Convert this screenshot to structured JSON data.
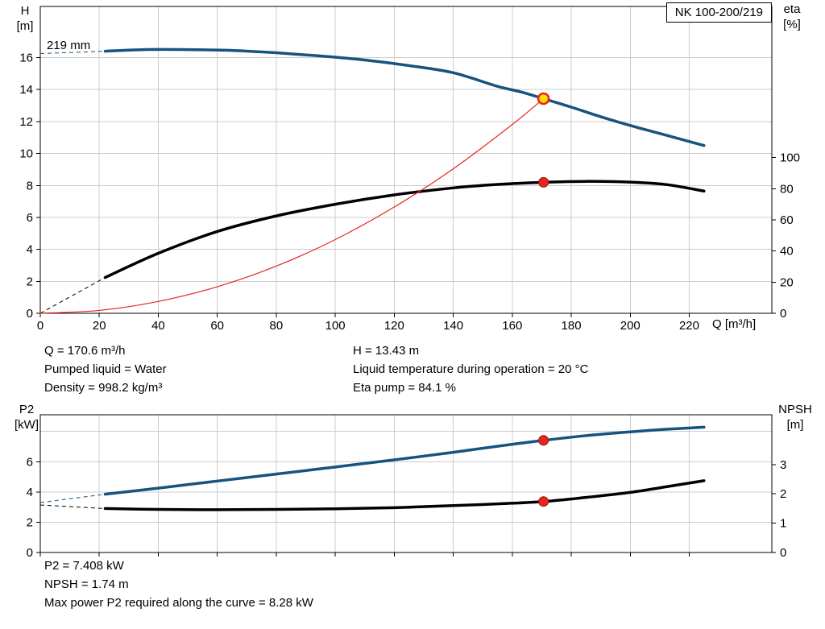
{
  "pump": {
    "model": "NK 100-200/219"
  },
  "info_top": {
    "left": [
      "Q = 170.6 m³/h",
      "Pumped liquid = Water",
      "Density = 998.2 kg/m³"
    ],
    "right": [
      "H = 13.43 m",
      "Liquid temperature during operation = 20 °C",
      "Eta pump = 84.1 %"
    ]
  },
  "info_bottom": [
    "P2 = 7.408 kW",
    "NPSH = 1.74 m",
    "Max power P2 required along the curve = 8.28 kW"
  ],
  "chart_data": [
    {
      "type": "line",
      "x": {
        "label": "Q [m³/h]",
        "min": 0,
        "max": 248,
        "ticks": [
          0,
          20,
          40,
          60,
          80,
          100,
          120,
          140,
          160,
          180,
          200,
          220
        ],
        "grid": [
          20,
          40,
          60,
          80,
          100,
          120,
          140,
          160,
          180,
          200,
          220
        ]
      },
      "y_left": {
        "name": "H",
        "unit": "[m]",
        "min": 0,
        "max": 19.2,
        "ticks": [
          0,
          2,
          4,
          6,
          8,
          10,
          12,
          14,
          16
        ],
        "grid": [
          2,
          4,
          6,
          8,
          10,
          12,
          14,
          16
        ]
      },
      "y_right": {
        "name": "eta",
        "unit": "[%]",
        "min": 0,
        "max": 197,
        "ticks": [
          0,
          20,
          40,
          60,
          80,
          100
        ]
      },
      "series": [
        {
          "id": "efficiency-curve",
          "label": "eta",
          "axis": "right",
          "color": "#000000",
          "width": 3.5,
          "dashed_lead": [
            [
              0,
              0
            ],
            [
              22,
              23
            ]
          ],
          "points": [
            [
              22,
              23
            ],
            [
              40,
              38.5
            ],
            [
              60,
              52.5
            ],
            [
              80,
              62.5
            ],
            [
              100,
              70
            ],
            [
              120,
              76
            ],
            [
              140,
              80.5
            ],
            [
              155,
              82.7
            ],
            [
              170.6,
              84.1
            ],
            [
              185,
              84.7
            ],
            [
              200,
              84.2
            ],
            [
              212,
              82.7
            ],
            [
              225,
              78.5
            ]
          ]
        },
        {
          "id": "head-curve",
          "label": "219 mm",
          "axis": "left",
          "color": "#16537e",
          "width": 3.5,
          "dashed_lead": [
            [
              0,
              16.25
            ],
            [
              22,
              16.4
            ]
          ],
          "points": [
            [
              22,
              16.4
            ],
            [
              35,
              16.5
            ],
            [
              50,
              16.5
            ],
            [
              65,
              16.45
            ],
            [
              80,
              16.3
            ],
            [
              95,
              16.1
            ],
            [
              110,
              15.85
            ],
            [
              125,
              15.5
            ],
            [
              140,
              15.05
            ],
            [
              155,
              14.2
            ],
            [
              163,
              13.85
            ],
            [
              170.6,
              13.43
            ],
            [
              180,
              12.9
            ],
            [
              190,
              12.3
            ],
            [
              200,
              11.75
            ],
            [
              212,
              11.15
            ],
            [
              225,
              10.5
            ]
          ]
        },
        {
          "id": "system-curve",
          "label": "system curve",
          "axis": "left",
          "color": "#e8251d",
          "width": 1.2,
          "points": [
            [
              0,
              0
            ],
            [
              20,
              0.18
            ],
            [
              40,
              0.74
            ],
            [
              60,
              1.66
            ],
            [
              80,
              2.95
            ],
            [
              100,
              4.61
            ],
            [
              120,
              6.65
            ],
            [
              140,
              9.04
            ],
            [
              160,
              11.81
            ],
            [
              170.6,
              13.43
            ]
          ]
        }
      ],
      "markers": [
        {
          "name": "duty-point-eta",
          "x": 170.6,
          "y": 84.1,
          "axis": "right",
          "r": 6,
          "fill": "#e8251d",
          "stroke": "#a01010",
          "stroke_width": 1
        },
        {
          "name": "duty-point-head",
          "x": 170.6,
          "y": 13.43,
          "axis": "left",
          "r": 6.5,
          "fill": "#ffe000",
          "stroke": "#e8251d",
          "stroke_width": 2.5
        }
      ]
    },
    {
      "type": "line",
      "x": {
        "label": "",
        "min": 0,
        "max": 248,
        "ticks": [
          0,
          20,
          40,
          60,
          80,
          100,
          120,
          140,
          160,
          180,
          200,
          220
        ],
        "grid": [
          20,
          40,
          60,
          80,
          100,
          120,
          140,
          160,
          180,
          200,
          220
        ]
      },
      "y_left": {
        "name": "P2",
        "unit": "[kW]",
        "min": 0,
        "max": 9.1,
        "ticks": [
          0,
          2,
          4,
          6
        ],
        "grid": [
          2,
          4,
          6,
          8
        ]
      },
      "y_right": {
        "name": "NPSH",
        "unit": "[m]",
        "min": 0,
        "max": 4.7,
        "ticks": [
          0,
          1,
          2,
          3
        ]
      },
      "series": [
        {
          "id": "npsh-curve",
          "label": "NPSH",
          "axis": "right",
          "color": "#000000",
          "width": 3.5,
          "dashed_lead": [
            [
              0,
              1.62
            ],
            [
              22,
              1.5
            ]
          ],
          "points": [
            [
              22,
              1.5
            ],
            [
              40,
              1.47
            ],
            [
              60,
              1.46
            ],
            [
              80,
              1.47
            ],
            [
              100,
              1.49
            ],
            [
              120,
              1.53
            ],
            [
              140,
              1.6
            ],
            [
              155,
              1.66
            ],
            [
              170.6,
              1.74
            ],
            [
              185,
              1.88
            ],
            [
              200,
              2.05
            ],
            [
              212,
              2.24
            ],
            [
              225,
              2.45
            ]
          ]
        },
        {
          "id": "p2-curve",
          "label": "P2",
          "axis": "left",
          "color": "#16537e",
          "width": 3.5,
          "dashed_lead": [
            [
              0,
              3.3
            ],
            [
              22,
              3.85
            ]
          ],
          "points": [
            [
              22,
              3.85
            ],
            [
              40,
              4.25
            ],
            [
              60,
              4.72
            ],
            [
              80,
              5.18
            ],
            [
              100,
              5.65
            ],
            [
              120,
              6.12
            ],
            [
              140,
              6.62
            ],
            [
              155,
              7.02
            ],
            [
              170.6,
              7.408
            ],
            [
              185,
              7.72
            ],
            [
              200,
              7.97
            ],
            [
              212,
              8.14
            ],
            [
              225,
              8.28
            ]
          ]
        }
      ],
      "markers": [
        {
          "name": "duty-point-p2",
          "x": 170.6,
          "y": 7.408,
          "axis": "left",
          "r": 6,
          "fill": "#e8251d",
          "stroke": "#a01010",
          "stroke_width": 1
        },
        {
          "name": "duty-point-npsh",
          "x": 170.6,
          "y": 1.74,
          "axis": "right",
          "r": 6,
          "fill": "#e8251d",
          "stroke": "#a01010",
          "stroke_width": 1
        }
      ]
    }
  ]
}
